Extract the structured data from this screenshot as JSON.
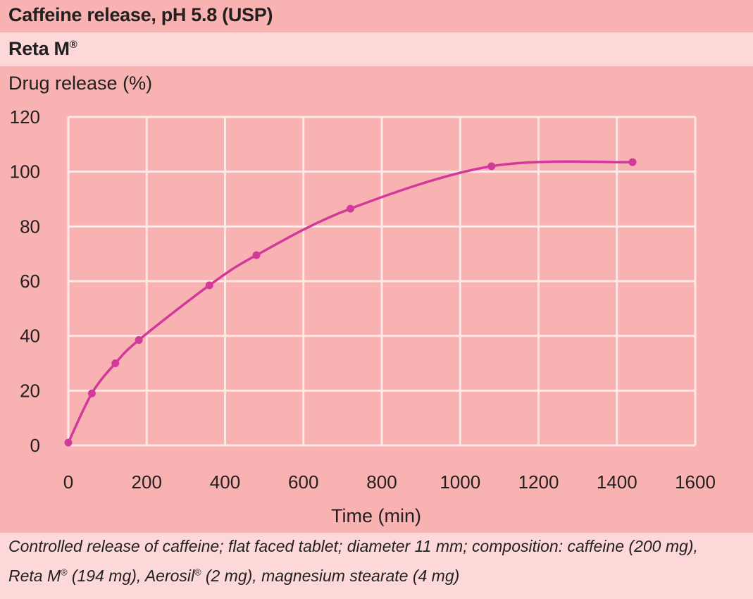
{
  "title": "Caffeine release, pH 5.8 (USP)",
  "subtitle": {
    "text": "Reta M",
    "mark": "®"
  },
  "caption": {
    "line1": "Controlled release of caffeine; flat faced tablet; diameter 11 mm; composition: caffeine (200 mg),",
    "line2_a": "Reta M",
    "line2_mark1": "®",
    "line2_b": " (194 mg), Aerosil",
    "line2_mark2": "®",
    "line2_c": " (2 mg), magnesium stearate (4 mg)"
  },
  "colors": {
    "background": "#f9b2b2",
    "band_light": "#fcd9d8",
    "grid": "#fde8e6",
    "series": "#d3399a",
    "text": "#231f20"
  },
  "chart_data": {
    "type": "line",
    "xlabel": "Time (min)",
    "ylabel": "Drug release (%)",
    "xlim": [
      0,
      1600
    ],
    "ylim": [
      0,
      120
    ],
    "xticks": [
      0,
      200,
      400,
      600,
      800,
      1000,
      1200,
      1400,
      1600
    ],
    "yticks": [
      0,
      20,
      40,
      60,
      80,
      100,
      120
    ],
    "grid": true,
    "smooth": true,
    "markers": true,
    "series": [
      {
        "x": [
          0,
          60,
          120,
          180,
          360,
          480,
          720,
          1080,
          1440
        ],
        "y": [
          1,
          19,
          30,
          38.5,
          58.5,
          69.5,
          86.5,
          102,
          103.5
        ]
      }
    ]
  }
}
